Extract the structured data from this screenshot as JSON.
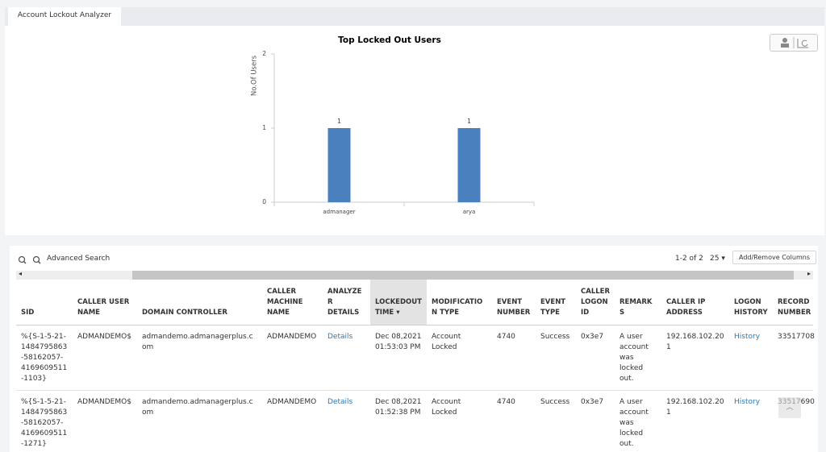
{
  "tab": "Account Lockout Analyzer",
  "chart_data": {
    "type": "bar",
    "title": "Top Locked Out Users",
    "y_label": "No.Of Users",
    "categories": [
      "admanager",
      "arya"
    ],
    "values": [
      1,
      1
    ],
    "color": "#4a80bd",
    "ylim": [
      0,
      2
    ],
    "yticks": [
      0,
      1,
      2
    ],
    "data_labels": true
  },
  "toolbar": {
    "search": "Advanced Search",
    "paging": "1-2 of 2",
    "page_size": "25",
    "columns_button": "Add/Remove Columns"
  },
  "table": {
    "columns": [
      "SID",
      "CALLER USER NAME",
      "DOMAIN CONTROLLER",
      "CALLER MACHINE NAME",
      "ANALYZER DETAILS",
      "LOCKEDOUT TIME",
      "MODIFICATION TYPE",
      "EVENT NUMBER",
      "EVENT TYPE",
      "CALLER LOGON ID",
      "REMARKS",
      "CALLER IP ADDRESS",
      "LOGON HISTORY",
      "RECORD NUMBER"
    ],
    "rows": [
      [
        "%{S-1-5-21-1484795863-58162057-4169609511-1103}",
        "ADMANDEMO$",
        "admandemo.admanagerplus.com",
        "ADMANDEMO",
        "Details",
        "Dec 08,2021 01:53:03 PM",
        "Account Locked",
        "4740",
        "Success",
        "0x3e7",
        "A user account was locked out.",
        "192.168.102.201",
        "History",
        "33517708"
      ],
      [
        "%{S-1-5-21-1484795863-58162057-4169609511-1271}",
        "ADMANDEMO$",
        "admandemo.admanagerplus.com",
        "ADMANDEMO",
        "Details",
        "Dec 08,2021 01:52:38 PM",
        "Account Locked",
        "4740",
        "Success",
        "0x3e7",
        "A user account was locked out.",
        "192.168.102.201",
        "History",
        "33517690"
      ]
    ]
  }
}
